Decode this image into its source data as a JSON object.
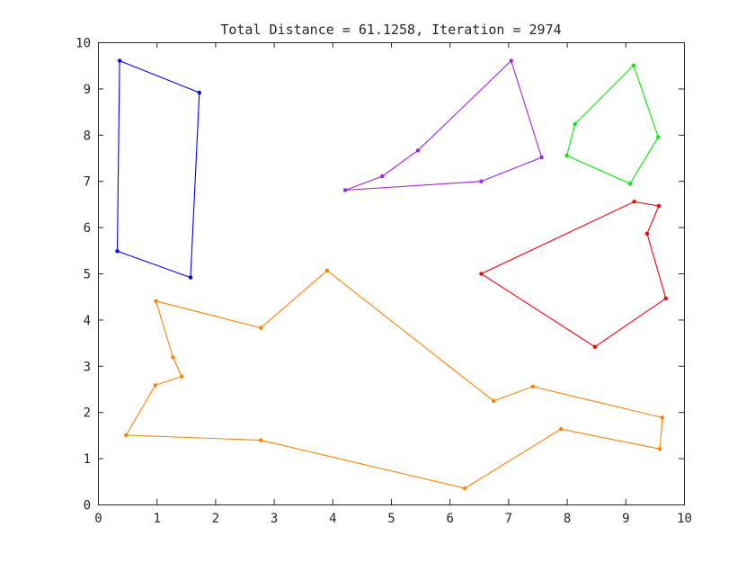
{
  "chart_data": {
    "type": "line",
    "title": "Total Distance = 61.1258, Iteration = 2974",
    "xlabel": "",
    "ylabel": "",
    "xlim": [
      0,
      10
    ],
    "ylim": [
      0,
      10
    ],
    "x_ticks": [
      "0",
      "1",
      "2",
      "3",
      "4",
      "5",
      "6",
      "7",
      "8",
      "9",
      "10"
    ],
    "y_ticks": [
      "0",
      "1",
      "2",
      "3",
      "4",
      "5",
      "6",
      "7",
      "8",
      "9",
      "10"
    ],
    "grid": false,
    "legend": "none",
    "series": [
      {
        "color": "#0000ff",
        "closed": true,
        "points": [
          [
            0.37,
            9.6
          ],
          [
            1.73,
            8.91
          ],
          [
            1.58,
            4.91
          ],
          [
            0.33,
            5.48
          ]
        ]
      },
      {
        "color": "#a020f0",
        "closed": true,
        "points": [
          [
            7.05,
            9.6
          ],
          [
            7.57,
            7.51
          ],
          [
            6.54,
            6.99
          ],
          [
            4.22,
            6.8
          ],
          [
            4.85,
            7.1
          ],
          [
            5.46,
            7.66
          ]
        ]
      },
      {
        "color": "#00ee00",
        "closed": true,
        "points": [
          [
            9.14,
            9.5
          ],
          [
            9.56,
            7.95
          ],
          [
            9.08,
            6.94
          ],
          [
            8.0,
            7.55
          ],
          [
            8.14,
            8.23
          ]
        ]
      },
      {
        "color": "#ff0000",
        "closed": true,
        "points": [
          [
            9.15,
            6.55
          ],
          [
            9.57,
            6.46
          ],
          [
            9.37,
            5.86
          ],
          [
            9.69,
            4.46
          ],
          [
            8.48,
            3.41
          ],
          [
            6.54,
            4.99
          ]
        ]
      },
      {
        "color": "#ff8000",
        "closed": true,
        "points": [
          [
            3.91,
            5.06
          ],
          [
            6.75,
            2.24
          ],
          [
            7.42,
            2.55
          ],
          [
            9.63,
            1.88
          ],
          [
            9.59,
            1.2
          ],
          [
            7.9,
            1.63
          ],
          [
            6.26,
            0.35
          ],
          [
            2.78,
            1.39
          ],
          [
            0.48,
            1.5
          ],
          [
            0.98,
            2.58
          ],
          [
            1.43,
            2.77
          ],
          [
            1.28,
            3.18
          ],
          [
            0.99,
            4.4
          ],
          [
            2.78,
            3.82
          ]
        ]
      }
    ]
  }
}
